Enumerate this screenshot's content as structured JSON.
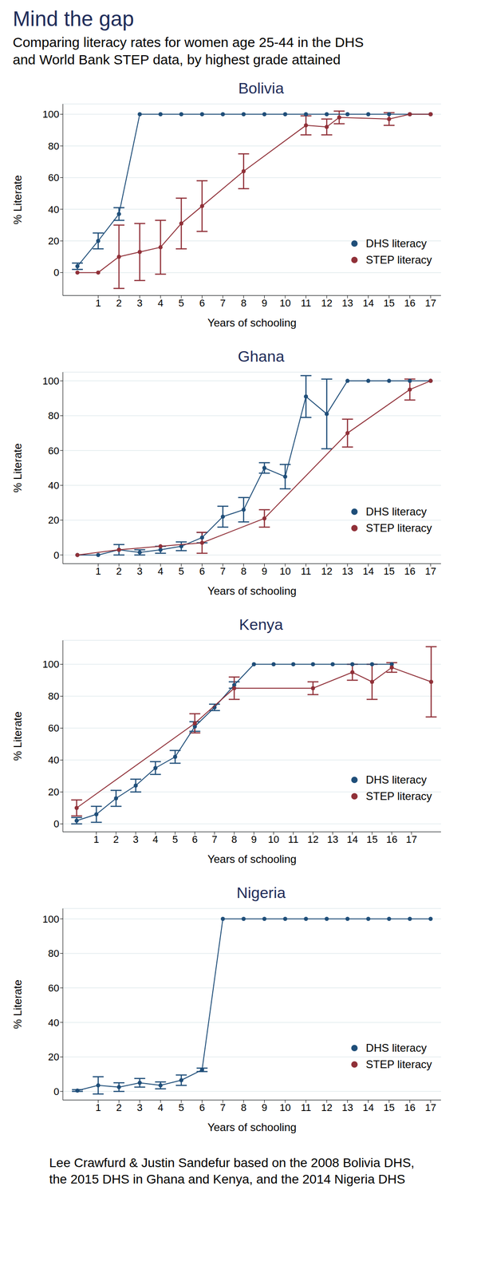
{
  "title": "Mind the gap",
  "subtitle": [
    "Comparing literacy rates for women age 25-44 in the DHS",
    "and World Bank STEP data, by highest grade attained"
  ],
  "source": [
    "Lee Crawfurd & Justin Sandefur based on the 2008 Bolivia DHS,",
    "the 2015 DHS in Ghana and Kenya, and the 2014 Nigeria DHS"
  ],
  "chart_data": [
    {
      "type": "line",
      "title": "Bolivia",
      "x_label": "Years of schooling",
      "y_label": "% Literate",
      "xlim": [
        -0.7,
        17.5
      ],
      "xticks": [
        1,
        2,
        3,
        4,
        5,
        6,
        7,
        8,
        9,
        10,
        11,
        12,
        13,
        14,
        15,
        16,
        17
      ],
      "ylim": [
        -14.5,
        106.5
      ],
      "yticks": [
        0,
        20,
        40,
        60,
        80,
        100
      ],
      "grid": true,
      "legend": "lower right",
      "series": [
        {
          "name": "DHS literacy",
          "color": "#1f4e79",
          "marker": "circle",
          "line_style": "solid",
          "x": [
            0,
            1,
            2,
            3,
            4,
            5,
            6,
            7,
            8,
            9,
            10,
            11,
            12,
            13,
            14,
            15,
            16,
            17
          ],
          "values": [
            4,
            20,
            37,
            100,
            100,
            100,
            100,
            100,
            100,
            100,
            100,
            100,
            100,
            100,
            100,
            100,
            100,
            100
          ],
          "error": [
            2,
            5,
            4,
            0,
            0,
            0,
            0,
            0,
            0,
            0,
            0,
            0,
            0,
            0,
            0,
            0,
            0,
            0
          ]
        },
        {
          "name": "STEP literacy",
          "color": "#903038",
          "marker": "circle",
          "line_style": "solid",
          "x": [
            0,
            1,
            2,
            3,
            4,
            5,
            6,
            8,
            11,
            12,
            12.6,
            15,
            16,
            17
          ],
          "values": [
            0,
            0,
            10,
            13,
            16,
            31,
            42,
            64,
            93,
            92,
            98,
            97,
            100,
            100
          ],
          "error": [
            0,
            0,
            20,
            18,
            17,
            16,
            16,
            11,
            6,
            5,
            4,
            4,
            0,
            0
          ]
        }
      ]
    },
    {
      "type": "line",
      "title": "Ghana",
      "x_label": "Years of schooling",
      "y_label": "% Literate",
      "xlim": [
        -0.7,
        17.5
      ],
      "xticks": [
        1,
        2,
        3,
        4,
        5,
        6,
        7,
        8,
        9,
        10,
        11,
        12,
        13,
        14,
        15,
        16,
        17
      ],
      "ylim": [
        -5,
        105
      ],
      "yticks": [
        0,
        20,
        40,
        60,
        80,
        100
      ],
      "grid": true,
      "legend": "lower right",
      "series": [
        {
          "name": "DHS literacy",
          "color": "#1f4e79",
          "marker": "circle",
          "line_style": "solid",
          "x": [
            0,
            1,
            2,
            3,
            4,
            5,
            6,
            7,
            8,
            9,
            10,
            11,
            12,
            13,
            14,
            15,
            16,
            17
          ],
          "values": [
            0,
            0,
            3,
            1.5,
            3,
            5,
            10,
            22,
            26,
            50,
            45,
            91,
            81,
            100,
            100,
            100,
            100,
            100
          ],
          "error": [
            0,
            0,
            3,
            1.5,
            2,
            2.5,
            3,
            6,
            7,
            3,
            7,
            12,
            20,
            0,
            0,
            0,
            0,
            0
          ]
        },
        {
          "name": "STEP literacy",
          "color": "#903038",
          "marker": "circle",
          "line_style": "solid",
          "x": [
            0,
            2,
            4,
            6,
            9,
            13,
            16,
            17
          ],
          "values": [
            0,
            3,
            5,
            7,
            21,
            70,
            95,
            100
          ],
          "error": [
            0,
            0,
            0,
            6,
            5,
            8,
            6,
            0
          ]
        }
      ]
    },
    {
      "type": "line",
      "title": "Kenya",
      "x_label": "Years of schooling",
      "y_label": "% Literate",
      "xlim": [
        -0.7,
        18.5
      ],
      "xticks": [
        1,
        2,
        3,
        4,
        5,
        6,
        7,
        8,
        9,
        10,
        11,
        12,
        13,
        14,
        15,
        16,
        17
      ],
      "ylim": [
        -5,
        115
      ],
      "yticks": [
        0,
        20,
        40,
        60,
        80,
        100
      ],
      "grid": true,
      "legend": "lower right",
      "series": [
        {
          "name": "DHS literacy",
          "color": "#1f4e79",
          "marker": "circle",
          "line_style": "solid",
          "x": [
            0,
            1,
            2,
            3,
            4,
            5,
            6,
            7,
            8,
            9,
            10,
            11,
            12,
            13,
            14,
            15,
            16
          ],
          "values": [
            2,
            6,
            16,
            24,
            35,
            42,
            61,
            73,
            87,
            100,
            100,
            100,
            100,
            100,
            100,
            100,
            100
          ],
          "error": [
            2,
            5,
            5,
            4,
            4,
            4,
            3,
            2,
            2,
            0,
            0,
            0,
            0,
            0,
            0,
            0,
            0
          ]
        },
        {
          "name": "STEP literacy",
          "color": "#903038",
          "marker": "circle",
          "line_style": "solid",
          "x": [
            0,
            6,
            8,
            12,
            14,
            15,
            16,
            18
          ],
          "values": [
            10,
            63,
            85,
            85,
            95,
            89,
            98,
            89
          ],
          "error": [
            5,
            6,
            7,
            4,
            5,
            11,
            3,
            22
          ]
        }
      ]
    },
    {
      "type": "line",
      "title": "Nigeria",
      "x_label": "Years of schooling",
      "y_label": "% Literate",
      "xlim": [
        -0.7,
        17.5
      ],
      "xticks": [
        1,
        2,
        3,
        4,
        5,
        6,
        7,
        8,
        9,
        10,
        11,
        12,
        13,
        14,
        15,
        16,
        17
      ],
      "ylim": [
        -5,
        106
      ],
      "yticks": [
        0,
        20,
        40,
        60,
        80,
        100
      ],
      "grid": true,
      "legend": "lower right",
      "series": [
        {
          "name": "DHS literacy",
          "color": "#1f4e79",
          "marker": "circle",
          "line_style": "solid",
          "x": [
            0,
            1,
            2,
            3,
            4,
            5,
            6,
            7,
            8,
            9,
            10,
            11,
            12,
            13,
            14,
            15,
            16,
            17
          ],
          "values": [
            0.5,
            3.5,
            2.5,
            5,
            3.5,
            6.5,
            12.5,
            100,
            100,
            100,
            100,
            100,
            100,
            100,
            100,
            100,
            100,
            100
          ],
          "error": [
            0.5,
            5,
            2.5,
            2.5,
            2,
            3,
            1,
            0,
            0,
            0,
            0,
            0,
            0,
            0,
            0,
            0,
            0,
            0
          ]
        },
        {
          "name": "STEP literacy",
          "color": "#903038",
          "marker": "circle",
          "line_style": "solid",
          "x": [],
          "values": [],
          "error": []
        }
      ]
    }
  ]
}
